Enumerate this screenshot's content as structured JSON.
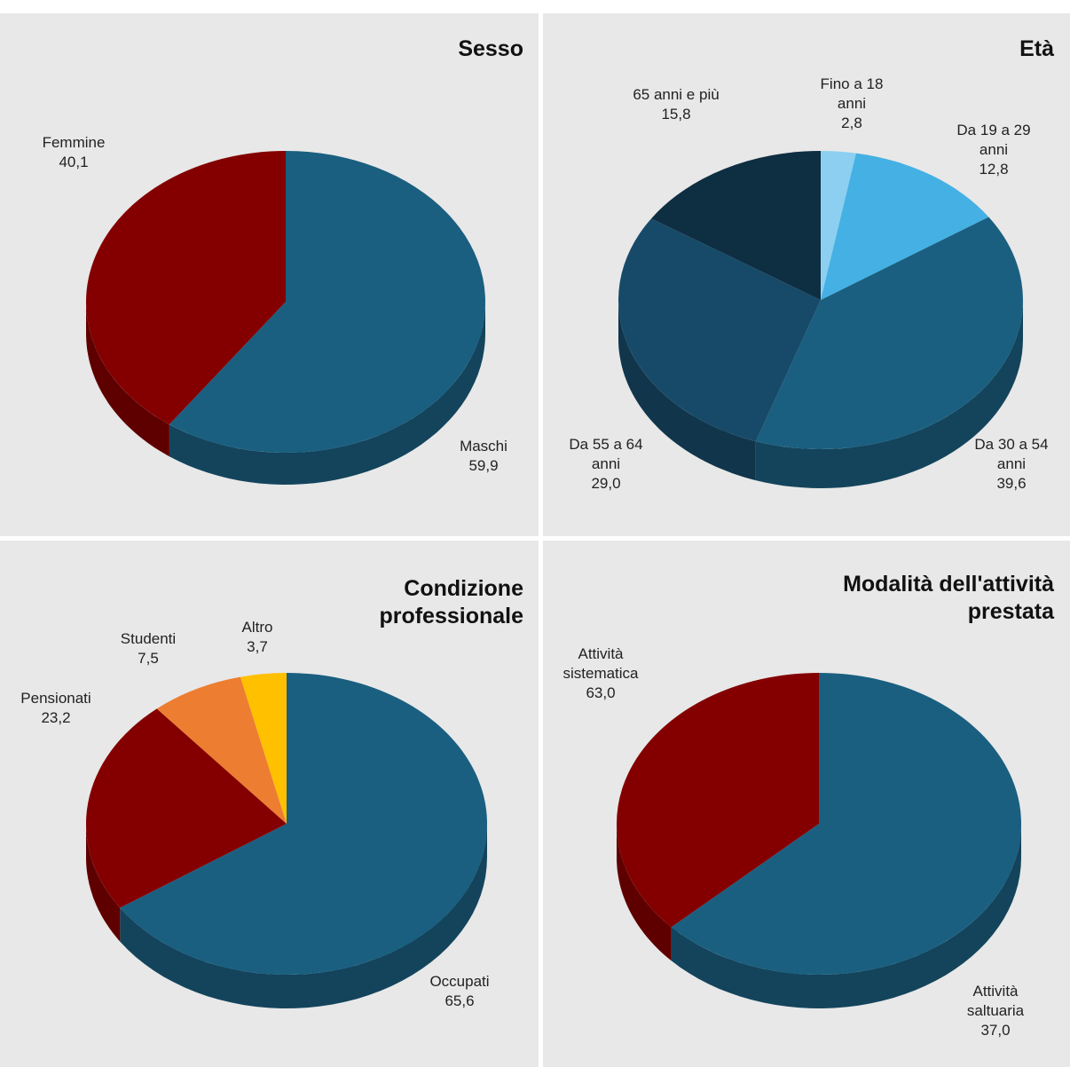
{
  "chart_data": [
    {
      "type": "pie",
      "title": "Sesso",
      "categories": [
        "Maschi",
        "Femmine"
      ],
      "values": [
        59.9,
        40.1
      ],
      "value_labels": [
        "59,9",
        "40,1"
      ],
      "colors": [
        "#1a5f80",
        "#840000"
      ]
    },
    {
      "type": "pie",
      "title": "Età",
      "categories": [
        "Fino a 18 anni",
        "Da 19 a 29 anni",
        "Da 30 a 54 anni",
        "Da 55 a 64 anni",
        "65 anni e più"
      ],
      "values": [
        2.8,
        12.8,
        39.6,
        29.0,
        15.8
      ],
      "value_labels": [
        "2,8",
        "12,8",
        "39,6",
        "29,0",
        "15,8"
      ],
      "colors": [
        "#8dcff0",
        "#45b0e3",
        "#1a5f80",
        "#174a68",
        "#0e2e42"
      ]
    },
    {
      "type": "pie",
      "title": "Condizione professionale",
      "categories": [
        "Occupati",
        "Pensionati",
        "Studenti",
        "Altro"
      ],
      "values": [
        65.6,
        23.2,
        7.5,
        3.7
      ],
      "value_labels": [
        "65,6",
        "23,2",
        "7,5",
        "3,7"
      ],
      "colors": [
        "#1a5f80",
        "#840000",
        "#ed7d31",
        "#ffc000"
      ]
    },
    {
      "type": "pie",
      "title": "Modalità dell'attività prestata",
      "categories": [
        "Attività sistematica",
        "Attività saltuaria"
      ],
      "values": [
        63.0,
        37.0
      ],
      "value_labels": [
        "63,0",
        "37,0"
      ],
      "colors": [
        "#1a5f80",
        "#840000"
      ]
    }
  ]
}
